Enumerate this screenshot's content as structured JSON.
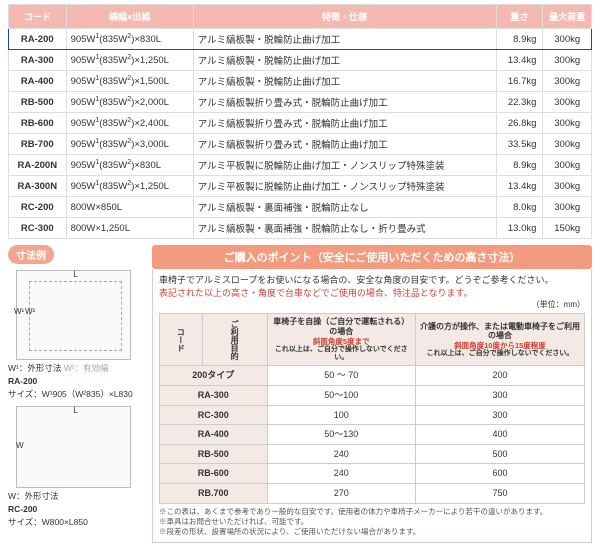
{
  "t1": {
    "headers": [
      "コード",
      "横幅×出幅",
      "特徴・仕様",
      "重さ",
      "最大荷重"
    ],
    "rows": [
      {
        "code": "RA-200",
        "dim": "905W¹(835W²)×830L",
        "spec": "アルミ縞板製・脱輪防止曲げ加工",
        "wt": "8.9kg",
        "cap": "300kg",
        "hl": true
      },
      {
        "code": "RA-300",
        "dim": "905W¹(835W²)×1,250L",
        "spec": "アルミ縞板製・脱輪防止曲げ加工",
        "wt": "13.4kg",
        "cap": "300kg"
      },
      {
        "code": "RA-400",
        "dim": "905W¹(835W²)×1,500L",
        "spec": "アルミ縞板製・脱輪防止曲げ加工",
        "wt": "16.7kg",
        "cap": "300kg"
      },
      {
        "code": "RB-500",
        "dim": "905W¹(835W²)×2,000L",
        "spec": "アルミ縞板製折り畳み式・脱輪防止曲げ加工",
        "wt": "22.3kg",
        "cap": "300kg"
      },
      {
        "code": "RB-600",
        "dim": "905W¹(835W²)×2,400L",
        "spec": "アルミ縞板製折り畳み式・脱輪防止曲げ加工",
        "wt": "26.8kg",
        "cap": "300kg"
      },
      {
        "code": "RB-700",
        "dim": "905W¹(835W²)×3,000L",
        "spec": "アルミ縞板製折り畳み式・脱輪防止曲げ加工",
        "wt": "33.5kg",
        "cap": "300kg"
      },
      {
        "code": "RA-200N",
        "dim": "905W¹(835W²)×830L",
        "spec": "アルミ平板製に脱輪防止曲げ加工・ノンスリップ特殊塗装",
        "wt": "8.9kg",
        "cap": "300kg"
      },
      {
        "code": "RA-300N",
        "dim": "905W¹(835W²)×1,250L",
        "spec": "アルミ平板製に脱輪防止曲げ加工・ノンスリップ特殊塗装",
        "wt": "13.4kg",
        "cap": "300kg"
      },
      {
        "code": "RC-200",
        "dim": "800W×850L",
        "spec": "アルミ縞板製・裏面補強・脱輪防止なし",
        "wt": "8.0kg",
        "cap": "300kg"
      },
      {
        "code": "RC-300",
        "dim": "800W×1,250L",
        "spec": "アルミ縞板製・裏面補強・脱輪防止なし・折り畳み式",
        "wt": "13.0kg",
        "cap": "150kg"
      }
    ]
  },
  "leftBadge": "寸法例",
  "d1": {
    "code": "RA-200",
    "size": "サイズ：W¹905（W²835）×L830",
    "w1": "W¹",
    "w2": "W²",
    "l": "L",
    "n1": "W¹：外形寸法",
    "n2": "W²：有効幅"
  },
  "d2": {
    "code": "RC-200",
    "size": "サイズ：W800×L850",
    "w": "W",
    "l": "L",
    "n": "W：外形寸法"
  },
  "banner": "ご購入のポイント（安全にご使用いただくための高さ寸法）",
  "intro1": "車椅子でアルミスロープをお使いになる場合の、安全な角度の目安です。どうぞご参考ください。",
  "intro2": "表記された以上の高さ・角度で台車などでご使用の場合、特注品となります。",
  "unit": "（単位：mm）",
  "t2": {
    "colLabel": "ご利用目的",
    "rowLabel": "コード",
    "h1": "車椅子を自操（ご自分で運転される）の場合",
    "h1s": "斜面角度5度まで",
    "h1n": "これ以上は、ご自分で操作しないでください。",
    "h2": "介護の方が操作、または電動車椅子をご利用の場合",
    "h2s": "斜面角度10度から15度程度",
    "h2n": "これ以上は、ご自分で操作しないでください。",
    "rows": [
      {
        "c": "200タイプ",
        "a": "50 ～ 70",
        "b": "200"
      },
      {
        "c": "RA-300",
        "a": "50～100",
        "b": "300"
      },
      {
        "c": "RC-300",
        "a": "100",
        "b": "300"
      },
      {
        "c": "RA-400",
        "a": "50～130",
        "b": "400"
      },
      {
        "c": "RB-500",
        "a": "240",
        "b": "500"
      },
      {
        "c": "RB-600",
        "a": "240",
        "b": "600"
      },
      {
        "c": "RB.700",
        "a": "270",
        "b": "750"
      }
    ]
  },
  "notes": [
    "※この表は、あくまで参考であり一般的な目安です。使用者の体力や車椅子メーカーにより若干の違いがあります。",
    "※車具はお問合せいただければ、可能です。",
    "※段差の形状、設置場所の状況により、ご使用いただけない場合があります。"
  ]
}
